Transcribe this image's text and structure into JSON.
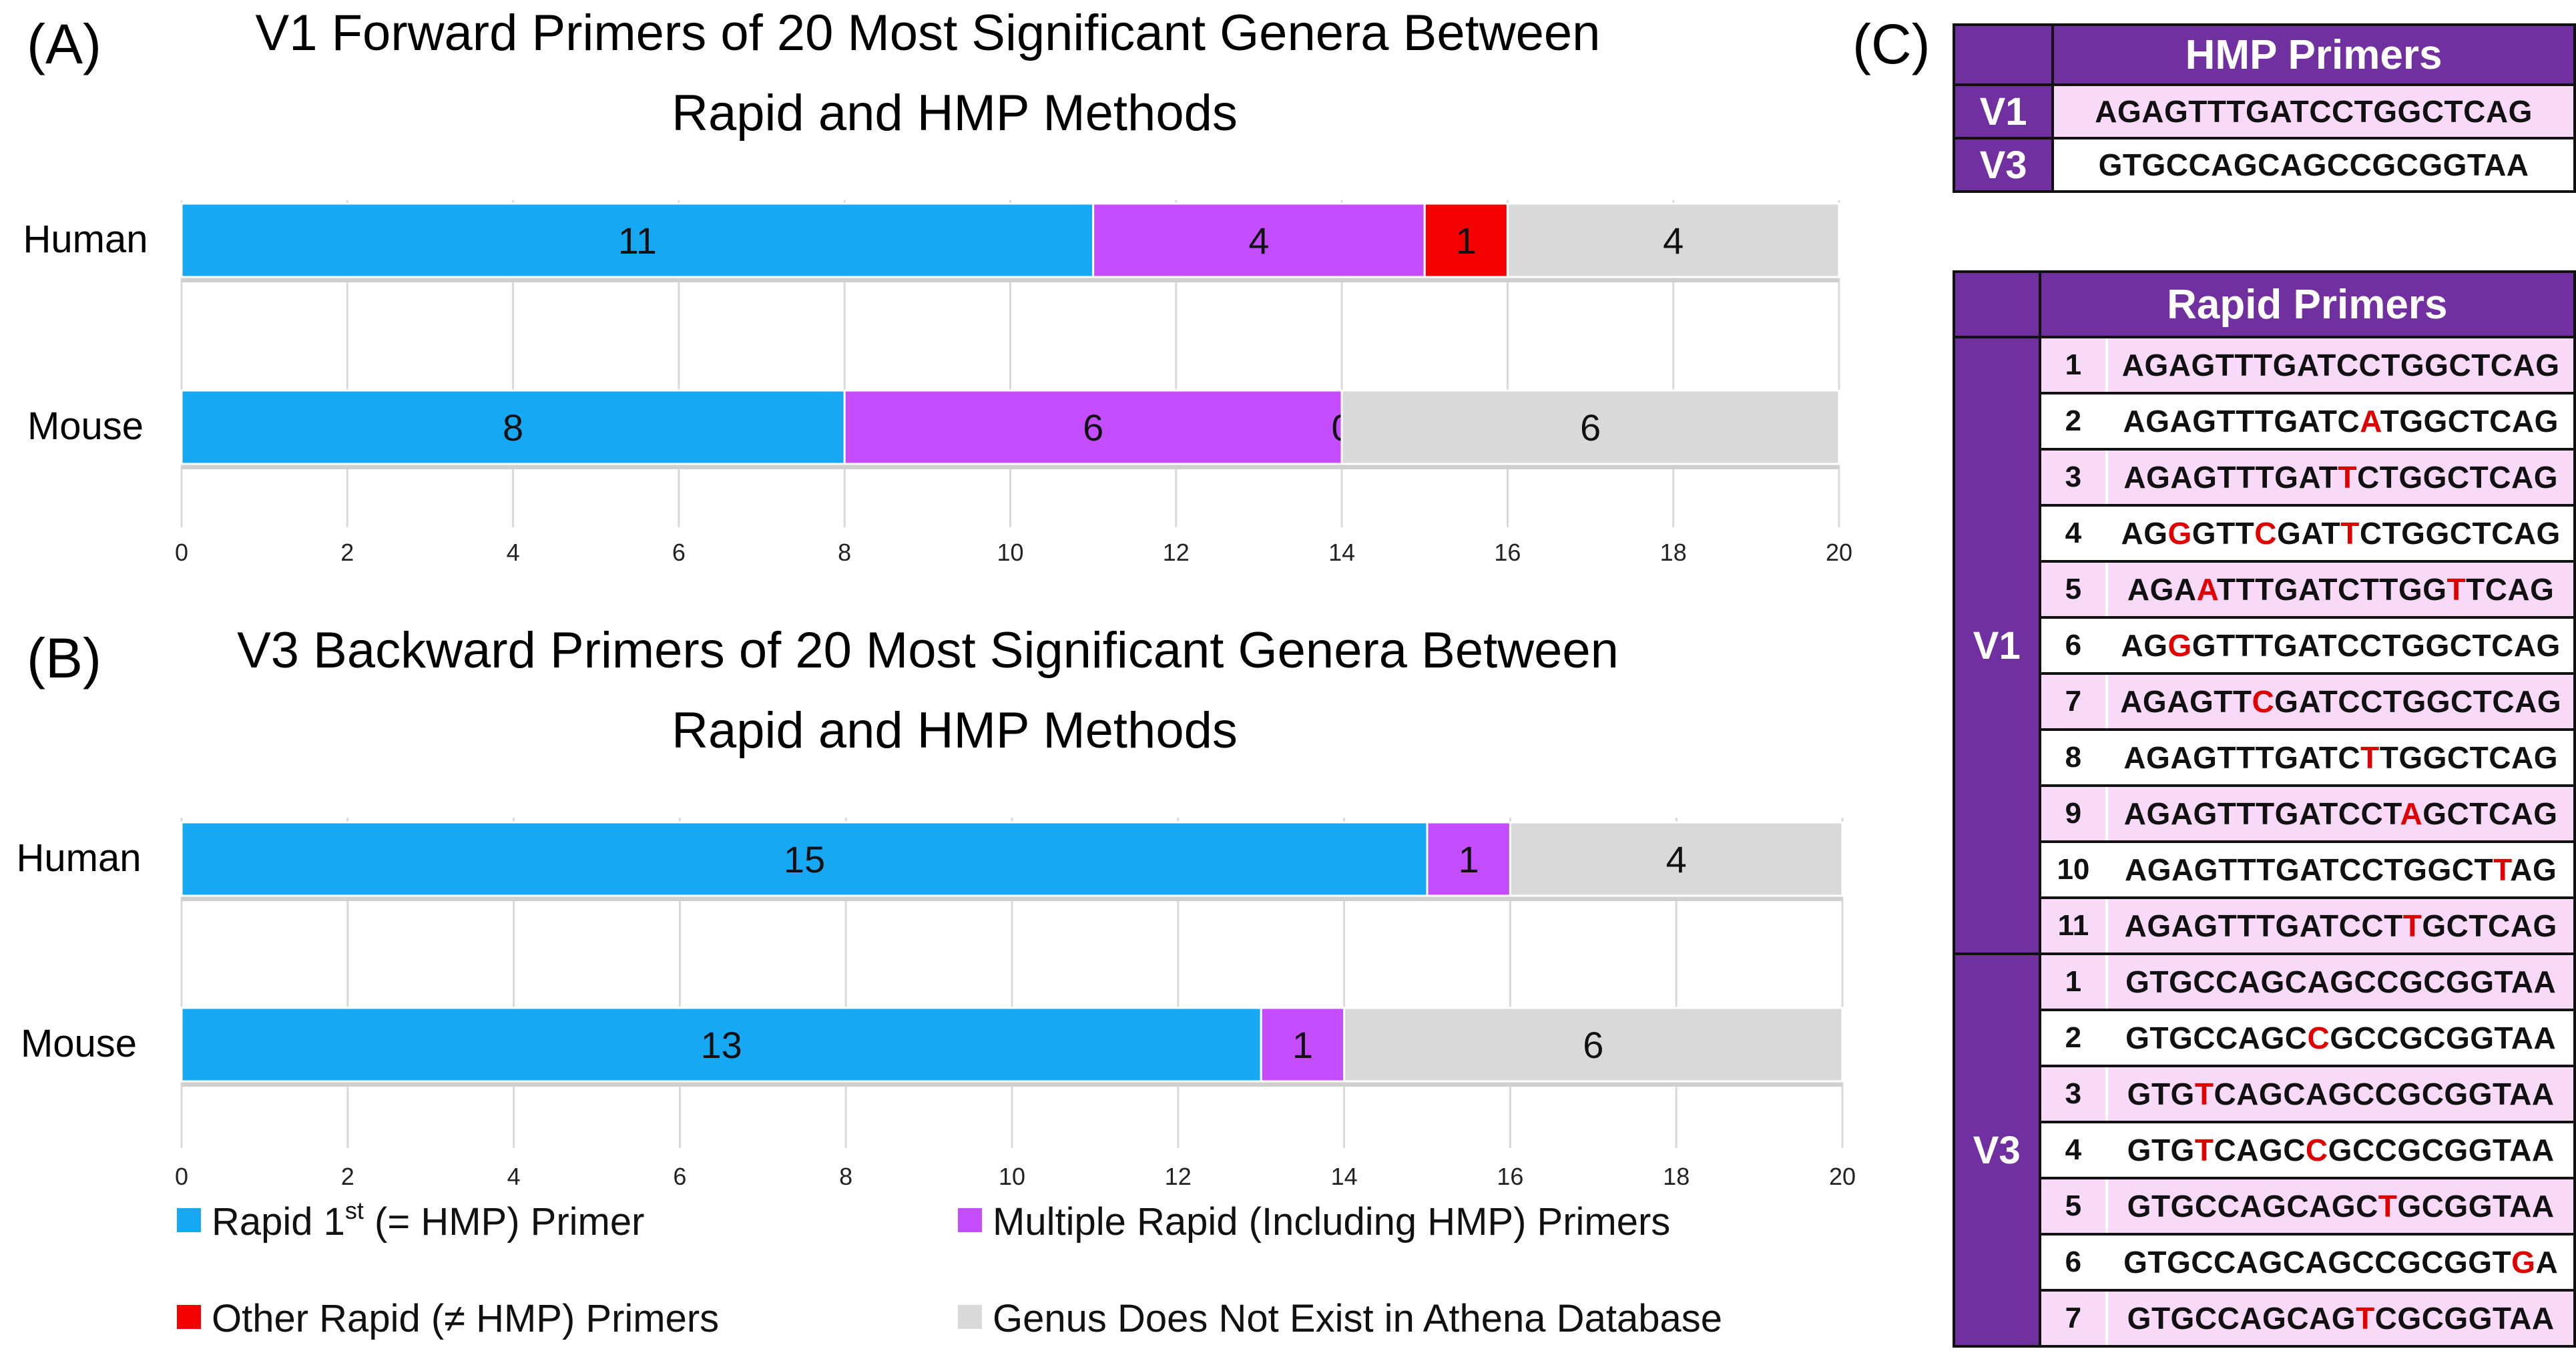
{
  "panels": {
    "A": "(A)",
    "B": "(B)",
    "C": "(C)"
  },
  "colors": {
    "rapid_first": "#17A8F4",
    "multiple": "#C44DFF",
    "other": "#F40000",
    "not_exist": "#D9D9D9",
    "table_header": "#7030A0",
    "table_highlight": "#F8D9F8",
    "mutation": "#E00000"
  },
  "chart_data": [
    {
      "type": "bar",
      "orientation": "horizontal",
      "stacked": true,
      "title_line1": "V1 Forward Primers of 20 Most Significant Genera Between",
      "title_line2": "Rapid and HMP Methods",
      "categories": [
        "Human",
        "Mouse"
      ],
      "series": [
        {
          "name": "Rapid 1st (= HMP) Primer",
          "values": [
            11,
            8
          ]
        },
        {
          "name": "Multiple Rapid (Including HMP) Primers",
          "values": [
            4,
            6
          ]
        },
        {
          "name": "Other Rapid (≠ HMP) Primers",
          "values": [
            1,
            0
          ]
        },
        {
          "name": "Genus Does Not Exist in Athena Database",
          "values": [
            4,
            6
          ]
        }
      ],
      "xlim": [
        0,
        20
      ],
      "ticks": [
        0,
        2,
        4,
        6,
        8,
        10,
        12,
        14,
        16,
        18,
        20
      ]
    },
    {
      "type": "bar",
      "orientation": "horizontal",
      "stacked": true,
      "title_line1": "V3 Backward Primers of 20 Most Significant Genera Between",
      "title_line2": "Rapid and HMP Methods",
      "categories": [
        "Human",
        "Mouse"
      ],
      "series": [
        {
          "name": "Rapid 1st (= HMP) Primer",
          "values": [
            15,
            13
          ]
        },
        {
          "name": "Multiple Rapid (Including HMP) Primers",
          "values": [
            1,
            1
          ]
        },
        {
          "name": "Other Rapid (≠ HMP) Primers",
          "values": [
            0,
            0
          ]
        },
        {
          "name": "Genus Does Not Exist in Athena Database",
          "values": [
            4,
            6
          ]
        }
      ],
      "xlim": [
        0,
        20
      ],
      "ticks": [
        0,
        2,
        4,
        6,
        8,
        10,
        12,
        14,
        16,
        18,
        20
      ]
    }
  ],
  "legend": {
    "items": [
      {
        "base": "Rapid 1",
        "sup": "st",
        "rest": " (= HMP) Primer"
      },
      {
        "base": "Multiple Rapid (Including HMP) Primers",
        "sup": "",
        "rest": ""
      },
      {
        "base": "Other Rapid (≠ HMP) Primers",
        "sup": "",
        "rest": ""
      },
      {
        "base": "Genus Does Not Exist in Athena Database",
        "sup": "",
        "rest": ""
      }
    ]
  },
  "hmp_table": {
    "title": "HMP Primers",
    "rows": [
      {
        "region": "V1",
        "seq": "AGAGTTTGATCCTGGCTCAG"
      },
      {
        "region": "V3",
        "seq": "GTGCCAGCAGCCGCGGTAA"
      }
    ]
  },
  "rapid_table": {
    "title": "Rapid Primers",
    "groups": [
      {
        "region": "V1",
        "rows": [
          {
            "n": "1",
            "seq": "AGAGTTTGATCCTGGCTCAG",
            "mut": []
          },
          {
            "n": "2",
            "seq": "AGAGTTTGATCATGGCTCAG",
            "mut": [
              11
            ]
          },
          {
            "n": "3",
            "seq": "AGAGTTTGATTCTGGCTCAG",
            "mut": [
              10
            ]
          },
          {
            "n": "4",
            "seq": "AGGGTTCGATTCTGGCTCAG",
            "mut": [
              2,
              6,
              10
            ]
          },
          {
            "n": "5",
            "seq": "AGAATTTGATCTTGGTTCAG",
            "mut": [
              3,
              15
            ]
          },
          {
            "n": "6",
            "seq": "AGGGTTTGATCCTGGCTCAG",
            "mut": [
              2
            ]
          },
          {
            "n": "7",
            "seq": "AGAGTTCGATCCTGGCTCAG",
            "mut": [
              6
            ]
          },
          {
            "n": "8",
            "seq": "AGAGTTTGATCTTGGCTCAG",
            "mut": [
              11
            ]
          },
          {
            "n": "9",
            "seq": "AGAGTTTGATCCTAGCTCAG",
            "mut": [
              13
            ]
          },
          {
            "n": "10",
            "seq": "AGAGTTTGATCCTGGCTTAG",
            "mut": [
              17
            ]
          },
          {
            "n": "11",
            "seq": "AGAGTTTGATCCTTGCTCAG",
            "mut": [
              13
            ]
          }
        ]
      },
      {
        "region": "V3",
        "rows": [
          {
            "n": "1",
            "seq": "GTGCCAGCAGCCGCGGTAA",
            "mut": []
          },
          {
            "n": "2",
            "seq": "GTGCCAGCCGCCGCGGTAA",
            "mut": [
              8
            ]
          },
          {
            "n": "3",
            "seq": "GTGTCAGCAGCCGCGGTAA",
            "mut": [
              3
            ]
          },
          {
            "n": "4",
            "seq": "GTGTCAGCCGCCGCGGTAA",
            "mut": [
              3,
              8
            ]
          },
          {
            "n": "5",
            "seq": "GTGCCAGCAGCTGCGGTAA",
            "mut": [
              11
            ]
          },
          {
            "n": "6",
            "seq": "GTGCCAGCAGCCGCGGTGA",
            "mut": [
              17
            ]
          },
          {
            "n": "7",
            "seq": "GTGCCAGCAGTCGCGGTAA",
            "mut": [
              10
            ]
          }
        ]
      }
    ]
  }
}
